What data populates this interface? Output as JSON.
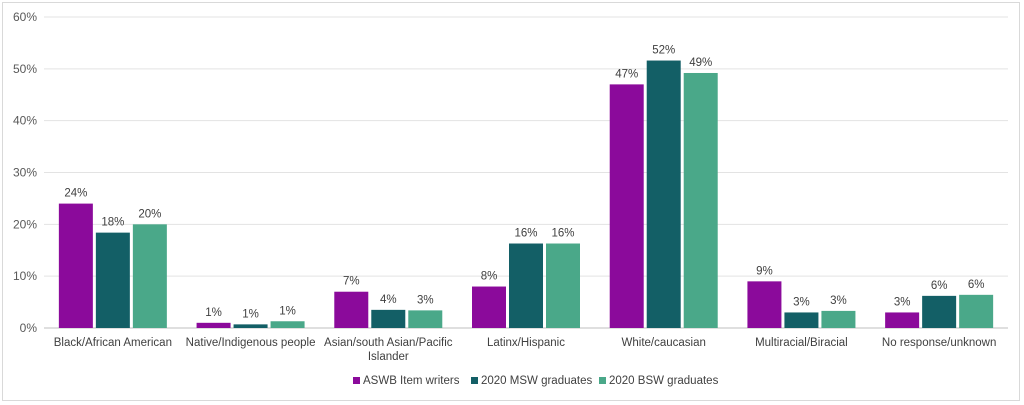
{
  "chart_data": {
    "type": "bar",
    "title": "",
    "xlabel": "",
    "ylabel": "",
    "ylim": [
      0,
      60
    ],
    "yticks": [
      "0%",
      "10%",
      "20%",
      "30%",
      "40%",
      "50%",
      "60%"
    ],
    "grid": true,
    "legend_position": "bottom",
    "categories": [
      [
        "Black/African American"
      ],
      [
        "Native/Indigenous people"
      ],
      [
        "Asian/south Asian/Pacific",
        "Islander"
      ],
      [
        "Latinx/Hispanic"
      ],
      [
        "White/caucasian"
      ],
      [
        "Multiracial/Biracial"
      ],
      [
        "No response/unknown"
      ]
    ],
    "series": [
      {
        "name": "ASWB Item writers",
        "color": "#8b0a9b",
        "values": [
          24,
          1,
          7,
          8,
          47,
          9,
          3
        ],
        "labels": [
          "24%",
          "1%",
          "7%",
          "8%",
          "47%",
          "9%",
          "3%"
        ]
      },
      {
        "name": "2020 MSW graduates",
        "color": "#135f66",
        "values": [
          18.4,
          0.7,
          3.5,
          16.3,
          51.6,
          3,
          6.2
        ],
        "labels": [
          "18%",
          "1%",
          "4%",
          "16%",
          "52%",
          "3%",
          "6%"
        ]
      },
      {
        "name": "2020 BSW graduates",
        "color": "#4aa889",
        "values": [
          20,
          1.3,
          3.4,
          16.3,
          49.2,
          3.3,
          6.4
        ],
        "labels": [
          "20%",
          "1%",
          "3%",
          "16%",
          "49%",
          "3%",
          "6%"
        ]
      }
    ]
  }
}
